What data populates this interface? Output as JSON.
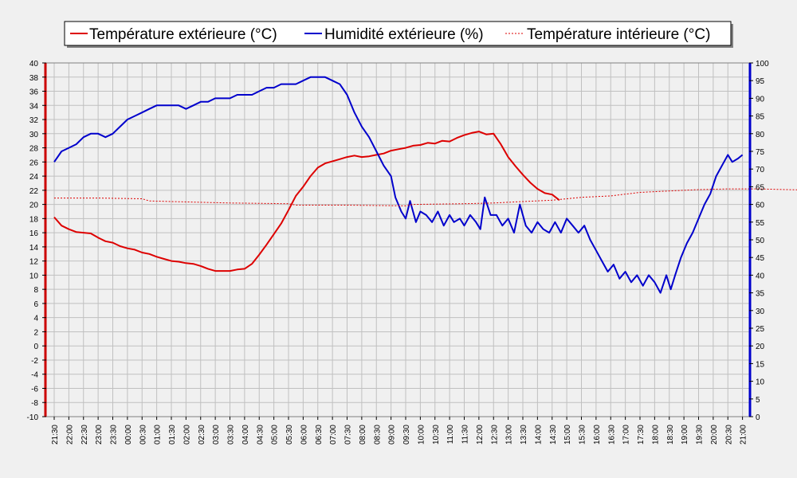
{
  "chart_data": {
    "type": "line",
    "title": "",
    "xlabel": "",
    "ylabel_left": "",
    "ylabel_right": "",
    "legend_position": "top-center",
    "grid": true,
    "colors": {
      "background": "#f0f0f0",
      "plot_background": "#f0f0f0",
      "grid": "#c0c0c0",
      "left_axis": "#cc0000",
      "right_axis": "#0000cc",
      "temp_ext": "#dd0000",
      "humidity": "#0000cc",
      "temp_int": "#dd0000"
    },
    "x_ticks": [
      "21:30",
      "22:00",
      "22:30",
      "23:00",
      "23:30",
      "00:00",
      "00:30",
      "01:00",
      "01:30",
      "02:00",
      "02:30",
      "03:00",
      "03:30",
      "04:00",
      "04:30",
      "05:00",
      "05:30",
      "06:00",
      "06:30",
      "07:00",
      "07:30",
      "08:00",
      "08:30",
      "09:00",
      "09:30",
      "10:00",
      "10:30",
      "11:00",
      "11:30",
      "12:00",
      "12:30",
      "13:00",
      "13:30",
      "14:00",
      "14:30",
      "15:00",
      "15:30",
      "16:00",
      "16:30",
      "17:00",
      "17:30",
      "18:00",
      "18:30",
      "19:00",
      "19:30",
      "20:00",
      "20:30",
      "21:00"
    ],
    "x_range_hours": [
      0,
      24
    ],
    "y_left": {
      "min": -10,
      "max": 40,
      "step": 2,
      "ticks": [
        "40",
        "38",
        "36",
        "34",
        "32",
        "30",
        "28",
        "26",
        "24",
        "22",
        "20",
        "18",
        "16",
        "14",
        "12",
        "10",
        "8",
        "6",
        "4",
        "2",
        "0",
        "-2",
        "-4",
        "-6",
        "-8",
        "-10"
      ]
    },
    "y_right": {
      "min": 0,
      "max": 100,
      "step": 5,
      "ticks": [
        "100",
        "95",
        "90",
        "85",
        "80",
        "75",
        "70",
        "65",
        "60",
        "55",
        "50",
        "45",
        "40",
        "35",
        "30",
        "25",
        "20",
        "15",
        "10",
        "5",
        "0"
      ]
    },
    "series": [
      {
        "name": "Température extérieure (°C)",
        "axis": "left",
        "style": "solid",
        "points": [
          [
            0,
            18.2
          ],
          [
            0.5,
            17
          ],
          [
            1,
            16.5
          ],
          [
            1.5,
            16.1
          ],
          [
            2,
            16
          ],
          [
            2.5,
            15.9
          ],
          [
            3,
            15.3
          ],
          [
            3.5,
            14.8
          ],
          [
            4,
            14.6
          ],
          [
            4.5,
            14.1
          ],
          [
            5,
            13.8
          ],
          [
            5.5,
            13.6
          ],
          [
            6,
            13.2
          ],
          [
            6.5,
            13
          ],
          [
            7,
            12.6
          ],
          [
            7.5,
            12.3
          ],
          [
            8,
            12
          ],
          [
            8.5,
            11.9
          ],
          [
            9,
            11.7
          ],
          [
            9.5,
            11.6
          ],
          [
            10,
            11.3
          ],
          [
            10.5,
            10.9
          ],
          [
            11,
            10.6
          ],
          [
            11.5,
            10.6
          ],
          [
            12,
            10.6
          ],
          [
            12.5,
            10.8
          ],
          [
            13,
            10.9
          ],
          [
            13.5,
            11.6
          ],
          [
            14,
            12.9
          ],
          [
            14.5,
            14.3
          ],
          [
            15,
            15.8
          ],
          [
            15.5,
            17.3
          ],
          [
            16,
            19.2
          ],
          [
            16.5,
            21.2
          ],
          [
            17,
            22.5
          ],
          [
            17.5,
            24
          ],
          [
            18,
            25.2
          ],
          [
            18.5,
            25.8
          ],
          [
            19,
            26.1
          ],
          [
            19.5,
            26.4
          ],
          [
            20,
            26.7
          ],
          [
            20.5,
            26.9
          ],
          [
            21,
            26.7
          ],
          [
            21.5,
            26.8
          ],
          [
            22,
            27
          ],
          [
            22.5,
            27.2
          ],
          [
            23,
            27.6
          ],
          [
            23.5,
            27.8
          ],
          [
            24,
            28
          ],
          [
            24.5,
            28.3
          ],
          [
            25,
            28.4
          ],
          [
            25.5,
            28.7
          ],
          [
            26,
            28.6
          ],
          [
            26.5,
            29
          ],
          [
            27,
            28.9
          ],
          [
            27.5,
            29.4
          ],
          [
            28,
            29.8
          ],
          [
            28.5,
            30.1
          ],
          [
            29,
            30.3
          ],
          [
            29.5,
            29.9
          ],
          [
            30,
            30
          ],
          [
            30.5,
            28.5
          ],
          [
            31,
            26.7
          ],
          [
            31.5,
            25.4
          ],
          [
            32,
            24.2
          ],
          [
            32.5,
            23.1
          ],
          [
            33,
            22.2
          ],
          [
            33.5,
            21.6
          ],
          [
            34,
            21.4
          ],
          [
            34.5,
            20.6
          ]
        ]
      },
      {
        "name": "Humidité extérieure (%)",
        "axis": "right",
        "style": "solid",
        "points": [
          [
            0,
            72
          ],
          [
            0.5,
            75
          ],
          [
            1,
            76
          ],
          [
            1.5,
            77
          ],
          [
            2,
            79
          ],
          [
            2.5,
            80
          ],
          [
            3,
            80
          ],
          [
            3.5,
            79
          ],
          [
            4,
            80
          ],
          [
            4.5,
            82
          ],
          [
            5,
            84
          ],
          [
            5.5,
            85
          ],
          [
            6,
            86
          ],
          [
            6.5,
            87
          ],
          [
            7,
            88
          ],
          [
            7.5,
            88
          ],
          [
            8,
            88
          ],
          [
            8.5,
            88
          ],
          [
            9,
            87
          ],
          [
            9.5,
            88
          ],
          [
            10,
            89
          ],
          [
            10.5,
            89
          ],
          [
            11,
            90
          ],
          [
            11.5,
            90
          ],
          [
            12,
            90
          ],
          [
            12.5,
            91
          ],
          [
            13,
            91
          ],
          [
            13.5,
            91
          ],
          [
            14,
            92
          ],
          [
            14.5,
            93
          ],
          [
            15,
            93
          ],
          [
            15.5,
            94
          ],
          [
            16,
            94
          ],
          [
            16.5,
            94
          ],
          [
            17,
            95
          ],
          [
            17.5,
            96
          ],
          [
            18,
            96
          ],
          [
            18.5,
            96
          ],
          [
            19,
            95
          ],
          [
            19.5,
            94
          ],
          [
            20,
            91
          ],
          [
            20.5,
            86
          ],
          [
            21,
            82
          ],
          [
            21.5,
            79
          ],
          [
            22,
            75
          ],
          [
            22.5,
            71
          ],
          [
            23,
            68
          ],
          [
            23.3,
            62
          ],
          [
            23.7,
            58
          ],
          [
            24,
            56
          ],
          [
            24.3,
            61
          ],
          [
            24.7,
            55
          ],
          [
            25,
            58
          ],
          [
            25.4,
            57
          ],
          [
            25.8,
            55
          ],
          [
            26.2,
            58
          ],
          [
            26.6,
            54
          ],
          [
            27,
            57
          ],
          [
            27.3,
            55
          ],
          [
            27.7,
            56
          ],
          [
            28,
            54
          ],
          [
            28.4,
            57
          ],
          [
            28.8,
            55
          ],
          [
            29.1,
            53
          ],
          [
            29.4,
            62
          ],
          [
            29.8,
            57
          ],
          [
            30.2,
            57
          ],
          [
            30.6,
            54
          ],
          [
            31,
            56
          ],
          [
            31.4,
            52
          ],
          [
            31.8,
            60
          ],
          [
            32.2,
            54
          ],
          [
            32.6,
            52
          ],
          [
            33,
            55
          ],
          [
            33.4,
            53
          ],
          [
            33.8,
            52
          ],
          [
            34.2,
            55
          ],
          [
            34.6,
            52
          ],
          [
            35,
            56
          ],
          [
            35.4,
            54
          ],
          [
            35.8,
            52
          ],
          [
            36.2,
            54
          ],
          [
            36.6,
            50
          ],
          [
            37,
            47
          ],
          [
            37.4,
            44
          ],
          [
            37.8,
            41
          ],
          [
            38.2,
            43
          ],
          [
            38.6,
            39
          ],
          [
            39,
            41
          ],
          [
            39.4,
            38
          ],
          [
            39.8,
            40
          ],
          [
            40.2,
            37
          ],
          [
            40.6,
            40
          ],
          [
            41,
            38
          ],
          [
            41.4,
            35
          ],
          [
            41.8,
            40
          ],
          [
            42.1,
            36
          ],
          [
            42.4,
            40
          ],
          [
            42.8,
            45
          ],
          [
            43.2,
            49
          ],
          [
            43.6,
            52
          ],
          [
            44,
            56
          ],
          [
            44.4,
            60
          ],
          [
            44.8,
            63
          ],
          [
            45.2,
            68
          ],
          [
            45.6,
            71
          ],
          [
            46,
            74
          ],
          [
            46.3,
            72
          ],
          [
            46.7,
            73
          ],
          [
            47,
            74
          ]
        ]
      },
      {
        "name": "Température intérieure (°C)",
        "axis": "left",
        "style": "dotted",
        "points": [
          [
            0,
            20.9
          ],
          [
            3,
            20.9
          ],
          [
            6,
            20.8
          ],
          [
            6.5,
            20.5
          ],
          [
            8,
            20.4
          ],
          [
            12,
            20.2
          ],
          [
            16,
            20.1
          ],
          [
            16.5,
            19.9
          ],
          [
            20,
            19.9
          ],
          [
            24,
            19.8
          ],
          [
            24.5,
            20
          ],
          [
            28,
            20.1
          ],
          [
            30,
            20.2
          ],
          [
            32,
            20.4
          ],
          [
            34,
            20.6
          ],
          [
            36,
            21
          ],
          [
            38,
            21.2
          ],
          [
            40,
            21.7
          ],
          [
            42,
            21.9
          ],
          [
            44,
            22.1
          ],
          [
            46,
            22.2
          ],
          [
            48,
            22.2
          ],
          [
            50,
            22.1
          ],
          [
            52,
            22
          ],
          [
            54,
            22
          ]
        ]
      }
    ]
  }
}
